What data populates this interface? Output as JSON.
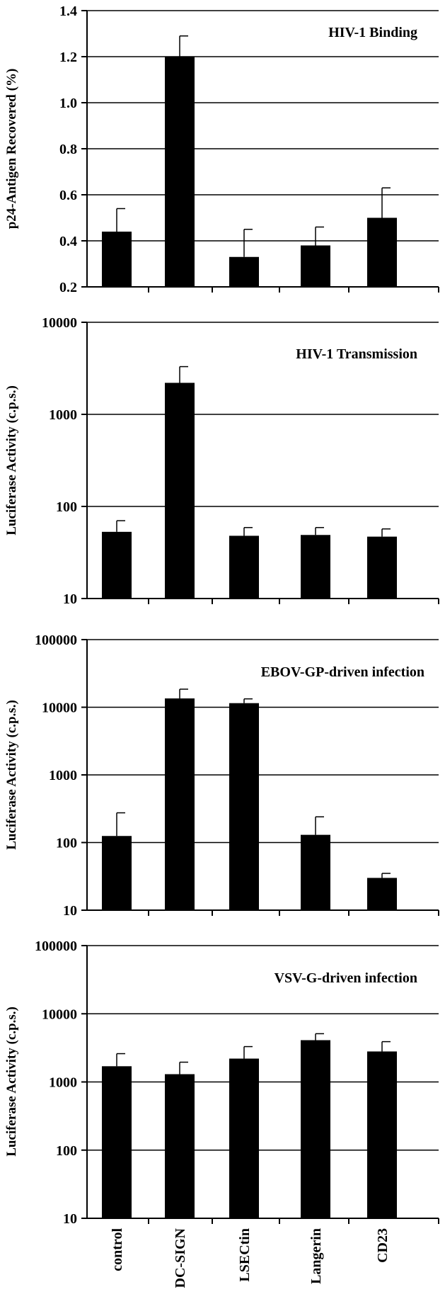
{
  "figure": {
    "categories": [
      "control",
      "DC-SIGN",
      "LSECtin",
      "Langerin",
      "CD23"
    ],
    "bar_color": "#000000"
  },
  "chart_data": [
    {
      "type": "bar",
      "title": "HIV-1 Binding",
      "xlabel": "",
      "ylabel": "p24-Antigen Recovered (%)",
      "scale": "linear",
      "ylim": [
        0.2,
        1.4
      ],
      "yticks": [
        "0.2",
        "0.4",
        "0.6",
        "0.8",
        "1.0",
        "1.2",
        "1.4"
      ],
      "grid": true,
      "categories": [
        "control",
        "DC-SIGN",
        "LSECtin",
        "Langerin",
        "CD23"
      ],
      "values": [
        0.44,
        1.2,
        0.33,
        0.38,
        0.5
      ],
      "errors": [
        0.1,
        0.09,
        0.12,
        0.08,
        0.13
      ]
    },
    {
      "type": "bar",
      "title": "HIV-1 Transmission",
      "xlabel": "",
      "ylabel": "Luciferase Activity (c.p.s.)",
      "scale": "log",
      "ylim": [
        10,
        10000
      ],
      "yticks": [
        "10",
        "100",
        "1000",
        "10000"
      ],
      "grid": true,
      "categories": [
        "control",
        "DC-SIGN",
        "LSECtin",
        "Langerin",
        "CD23"
      ],
      "values": [
        53,
        2200,
        48,
        49,
        47
      ],
      "errors": [
        17,
        1100,
        11,
        10,
        10
      ]
    },
    {
      "type": "bar",
      "title": "EBOV-GP-driven infection",
      "xlabel": "",
      "ylabel": "Luciferase Activity (c.p.s.)",
      "scale": "log",
      "ylim": [
        10,
        100000
      ],
      "yticks": [
        "10",
        "100",
        "1000",
        "10000",
        "100000"
      ],
      "grid": true,
      "categories": [
        "control",
        "DC-SIGN",
        "LSECtin",
        "Langerin",
        "CD23"
      ],
      "values": [
        125,
        13500,
        11500,
        130,
        30
      ],
      "errors": [
        150,
        5000,
        1800,
        110,
        5
      ]
    },
    {
      "type": "bar",
      "title": "VSV-G-driven infection",
      "xlabel": "",
      "ylabel": "Luciferase Activity (c.p.s.)",
      "scale": "log",
      "ylim": [
        10,
        100000
      ],
      "yticks": [
        "10",
        "100",
        "1000",
        "10000",
        "100000"
      ],
      "grid": true,
      "categories": [
        "control",
        "DC-SIGN",
        "LSECtin",
        "Langerin",
        "CD23"
      ],
      "values": [
        1700,
        1300,
        2200,
        4100,
        2800
      ],
      "errors": [
        900,
        650,
        1100,
        1000,
        1100
      ]
    }
  ]
}
